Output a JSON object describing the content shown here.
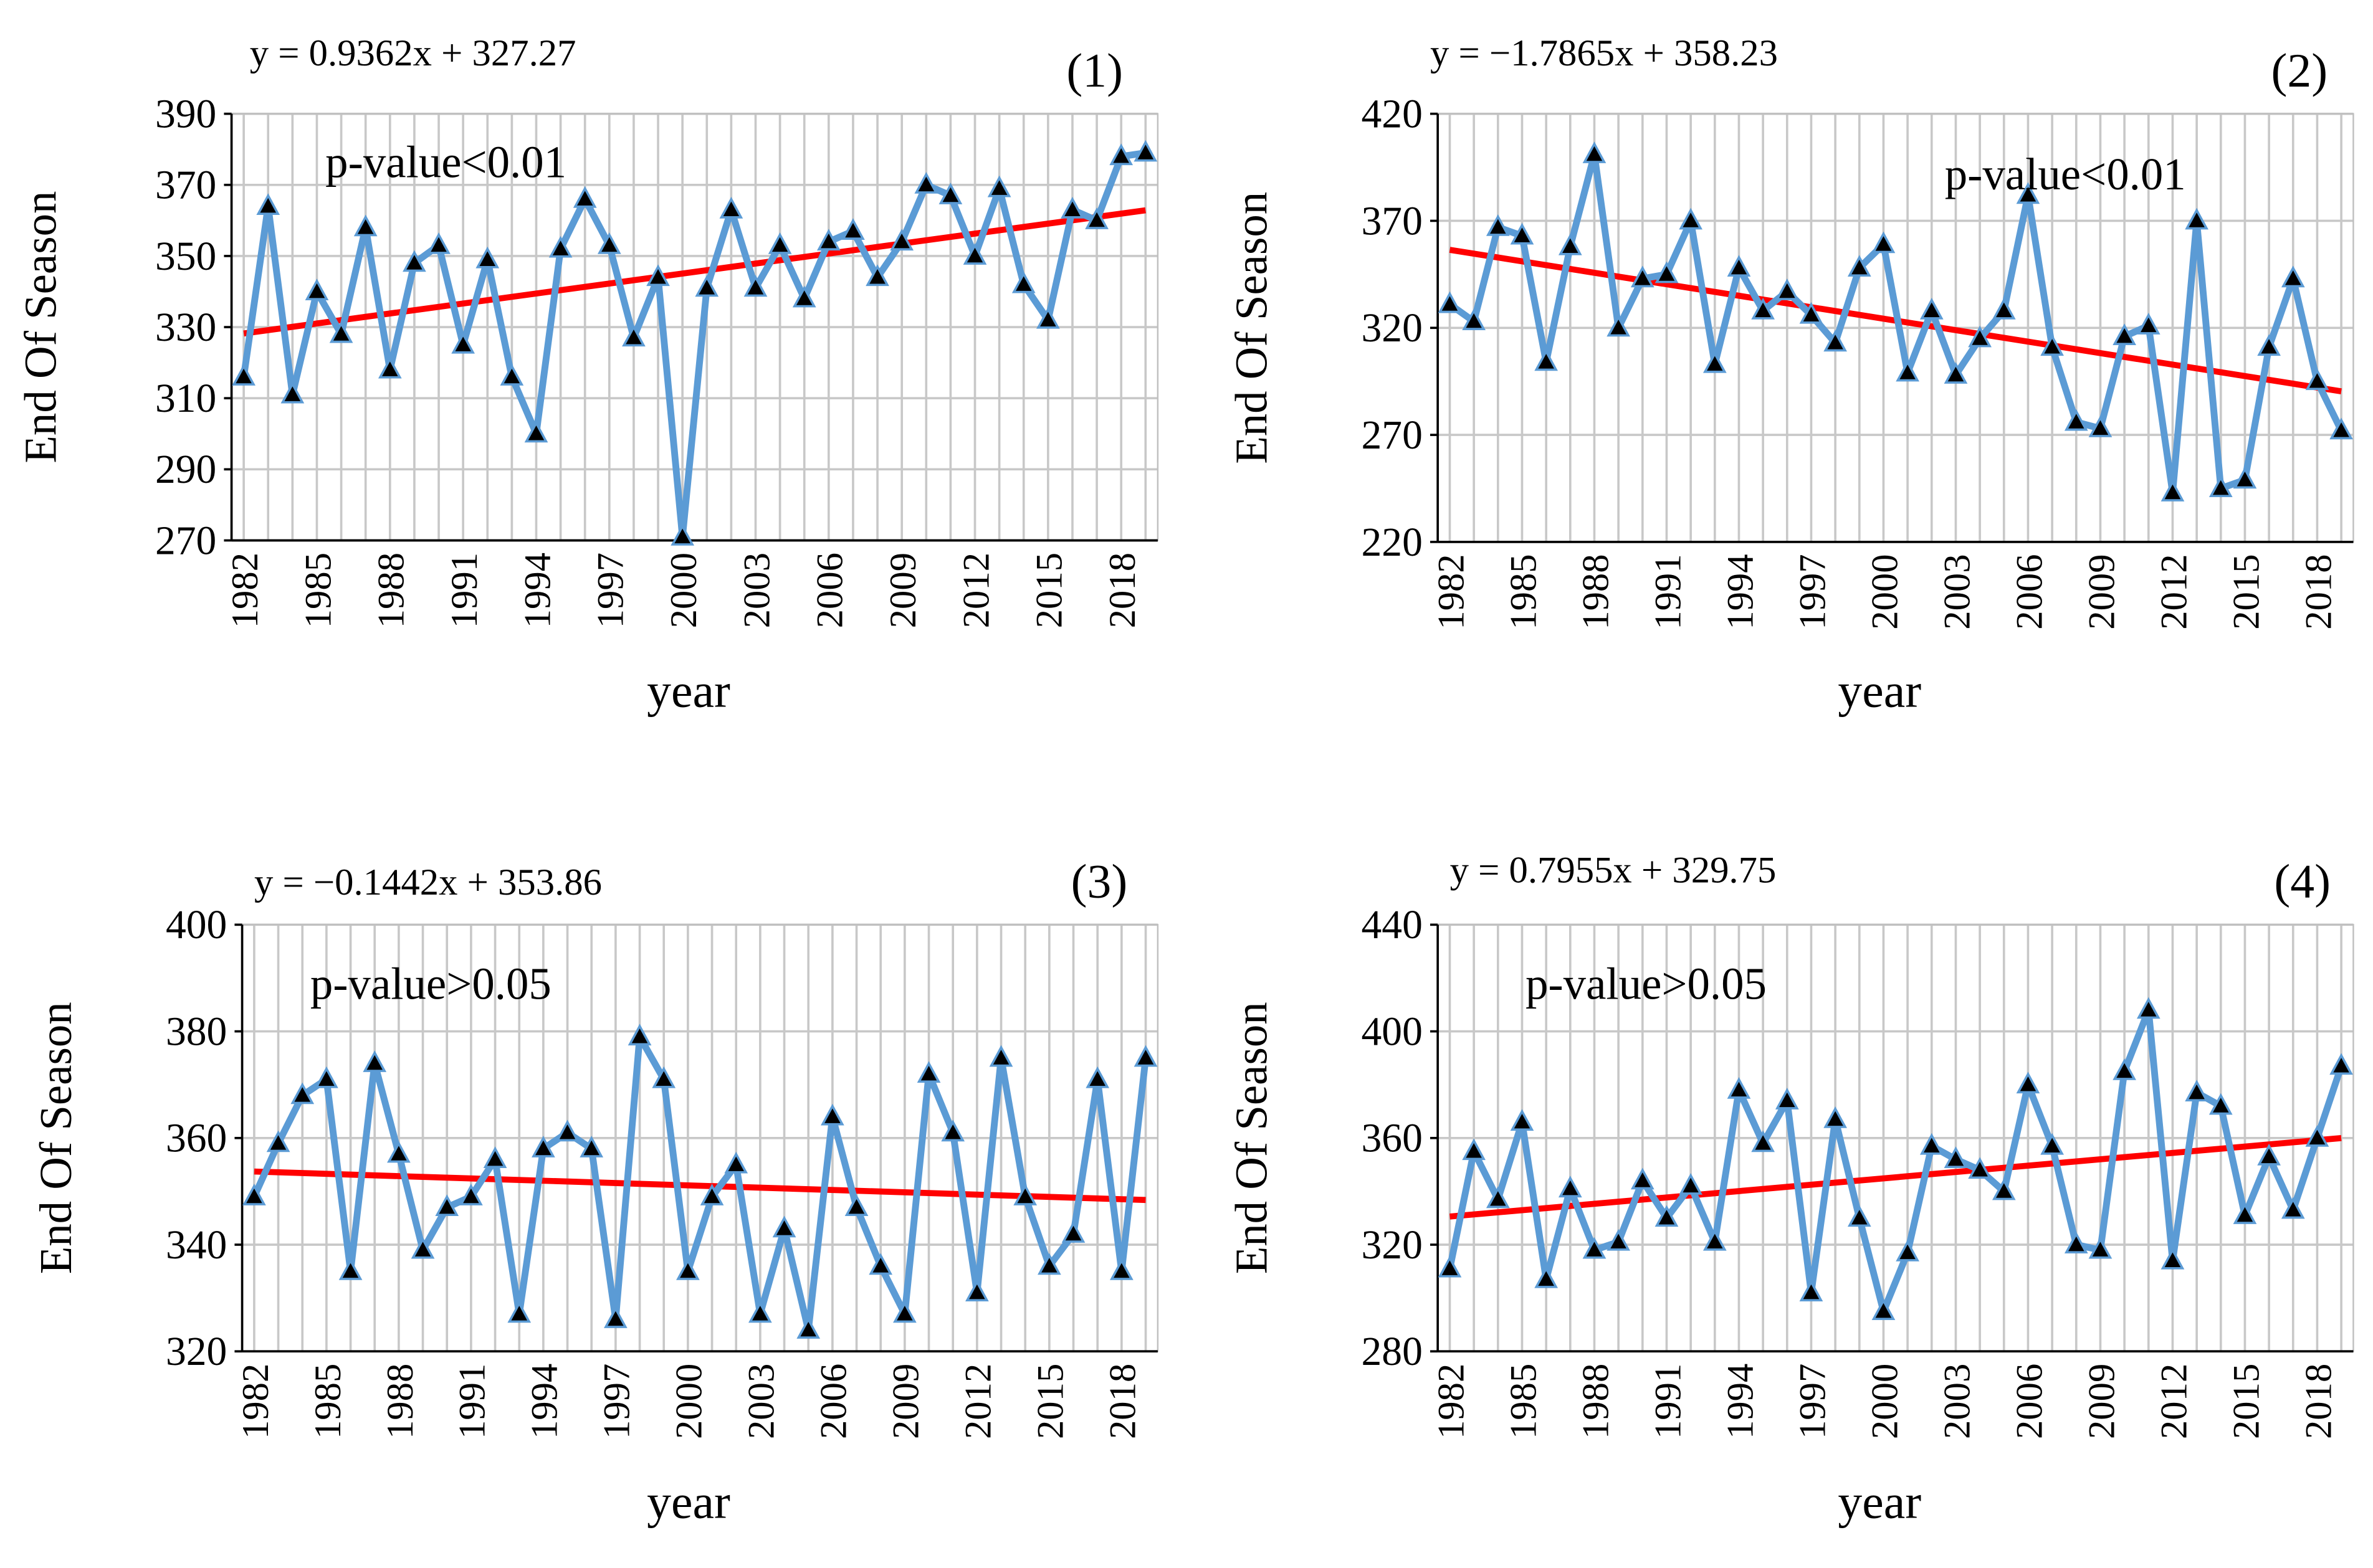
{
  "chart_data": [
    {
      "type": "line",
      "equation": "y = 0.9362x + 327.27",
      "panel_label": "(1)",
      "p_value": "p-value<0.01",
      "xlabel": "year",
      "ylabel": "End Of Season",
      "grid": true,
      "marker": "triangle",
      "x": [
        1982,
        1983,
        1984,
        1985,
        1986,
        1987,
        1988,
        1989,
        1990,
        1991,
        1992,
        1993,
        1994,
        1995,
        1996,
        1997,
        1998,
        1999,
        2000,
        2001,
        2002,
        2003,
        2004,
        2005,
        2006,
        2007,
        2008,
        2009,
        2010,
        2011,
        2012,
        2013,
        2014,
        2015,
        2016,
        2017,
        2018,
        2019
      ],
      "xlim": [
        1981.5,
        2019.5
      ],
      "xticks": [
        1982,
        1985,
        1988,
        1991,
        1994,
        1997,
        2000,
        2003,
        2006,
        2009,
        2012,
        2015,
        2018
      ],
      "ylim": [
        270,
        390
      ],
      "yticks": [
        270,
        290,
        310,
        330,
        350,
        370,
        390
      ],
      "series": [
        {
          "color": "#5b9bd5",
          "values": [
            316,
            364,
            311,
            340,
            328,
            358,
            318,
            348,
            353,
            325,
            349,
            316,
            300,
            352,
            366,
            353,
            327,
            344,
            271,
            341,
            363,
            341,
            353,
            338,
            354,
            357,
            344,
            354,
            370,
            367,
            350,
            369,
            342,
            332,
            363,
            360,
            378,
            379
          ]
        }
      ],
      "trend": {
        "color": "#ff0000",
        "x": [
          1982,
          2019
        ],
        "values": [
          328.21,
          362.85
        ]
      }
    },
    {
      "type": "line",
      "equation": "y = −1.7865x + 358.23",
      "panel_label": "(2)",
      "p_value": "p-value<0.01",
      "xlabel": "year",
      "ylabel": "End Of Season",
      "grid": true,
      "marker": "triangle",
      "x": [
        1982,
        1983,
        1984,
        1985,
        1986,
        1987,
        1988,
        1989,
        1990,
        1991,
        1992,
        1993,
        1994,
        1995,
        1996,
        1997,
        1998,
        1999,
        2000,
        2001,
        2002,
        2003,
        2004,
        2005,
        2006,
        2007,
        2008,
        2009,
        2010,
        2011,
        2012,
        2013,
        2014,
        2015,
        2016,
        2017,
        2018,
        2019
      ],
      "xlim": [
        1981.5,
        2019.5
      ],
      "xticks": [
        1982,
        1985,
        1988,
        1991,
        1994,
        1997,
        2000,
        2003,
        2006,
        2009,
        2012,
        2015,
        2018
      ],
      "ylim": [
        220,
        420
      ],
      "yticks": [
        220,
        270,
        320,
        370,
        420
      ],
      "series": [
        {
          "color": "#5b9bd5",
          "values": [
            331,
            323,
            367,
            363,
            304,
            358,
            401,
            320,
            343,
            345,
            370,
            303,
            348,
            328,
            337,
            326,
            313,
            348,
            359,
            299,
            328,
            298,
            315,
            328,
            382,
            311,
            276,
            273,
            316,
            321,
            243,
            370,
            245,
            249,
            311,
            343,
            295,
            272
          ]
        }
      ],
      "trend": {
        "color": "#ff0000",
        "x": [
          1982,
          2019
        ],
        "values": [
          356.44,
          290.34
        ]
      }
    },
    {
      "type": "line",
      "equation": "y = −0.1442x + 353.86",
      "panel_label": "(3)",
      "p_value": "p-value>0.05",
      "xlabel": "year",
      "ylabel": "End Of Season",
      "grid": true,
      "marker": "triangle",
      "x": [
        1982,
        1983,
        1984,
        1985,
        1986,
        1987,
        1988,
        1989,
        1990,
        1991,
        1992,
        1993,
        1994,
        1995,
        1996,
        1997,
        1998,
        1999,
        2000,
        2001,
        2002,
        2003,
        2004,
        2005,
        2006,
        2007,
        2008,
        2009,
        2010,
        2011,
        2012,
        2013,
        2014,
        2015,
        2016,
        2017,
        2018,
        2019
      ],
      "xlim": [
        1981.5,
        2019.5
      ],
      "xticks": [
        1982,
        1985,
        1988,
        1991,
        1994,
        1997,
        2000,
        2003,
        2006,
        2009,
        2012,
        2015,
        2018
      ],
      "ylim": [
        320,
        400
      ],
      "yticks": [
        320,
        340,
        360,
        380,
        400
      ],
      "series": [
        {
          "color": "#5b9bd5",
          "values": [
            349,
            359,
            368,
            371,
            335,
            374,
            357,
            339,
            347,
            349,
            356,
            327,
            358,
            361,
            358,
            326,
            379,
            371,
            335,
            349,
            355,
            327,
            343,
            324,
            364,
            347,
            336,
            327,
            372,
            361,
            331,
            375,
            349,
            336,
            342,
            371,
            335,
            375
          ]
        }
      ],
      "trend": {
        "color": "#ff0000",
        "x": [
          1982,
          2019
        ],
        "values": [
          353.72,
          348.38
        ]
      }
    },
    {
      "type": "line",
      "equation": "y = 0.7955x + 329.75",
      "panel_label": "(4)",
      "p_value": "p-value>0.05",
      "xlabel": "year",
      "ylabel": "End Of Season",
      "grid": true,
      "marker": "triangle",
      "x": [
        1982,
        1983,
        1984,
        1985,
        1986,
        1987,
        1988,
        1989,
        1990,
        1991,
        1992,
        1993,
        1994,
        1995,
        1996,
        1997,
        1998,
        1999,
        2000,
        2001,
        2002,
        2003,
        2004,
        2005,
        2006,
        2007,
        2008,
        2009,
        2010,
        2011,
        2012,
        2013,
        2014,
        2015,
        2016,
        2017,
        2018,
        2019
      ],
      "xlim": [
        1981.5,
        2019.5
      ],
      "xticks": [
        1982,
        1985,
        1988,
        1991,
        1994,
        1997,
        2000,
        2003,
        2006,
        2009,
        2012,
        2015,
        2018
      ],
      "ylim": [
        280,
        440
      ],
      "yticks": [
        280,
        320,
        360,
        400,
        440
      ],
      "series": [
        {
          "color": "#5b9bd5",
          "values": [
            311,
            355,
            337,
            366,
            307,
            341,
            318,
            321,
            344,
            330,
            342,
            321,
            378,
            358,
            374,
            302,
            367,
            330,
            295,
            317,
            357,
            352,
            348,
            340,
            380,
            357,
            320,
            318,
            385,
            408,
            314,
            377,
            372,
            331,
            353,
            333,
            360,
            387
          ]
        }
      ],
      "trend": {
        "color": "#ff0000",
        "x": [
          1982,
          2019
        ],
        "values": [
          330.55,
          359.98
        ]
      }
    }
  ]
}
